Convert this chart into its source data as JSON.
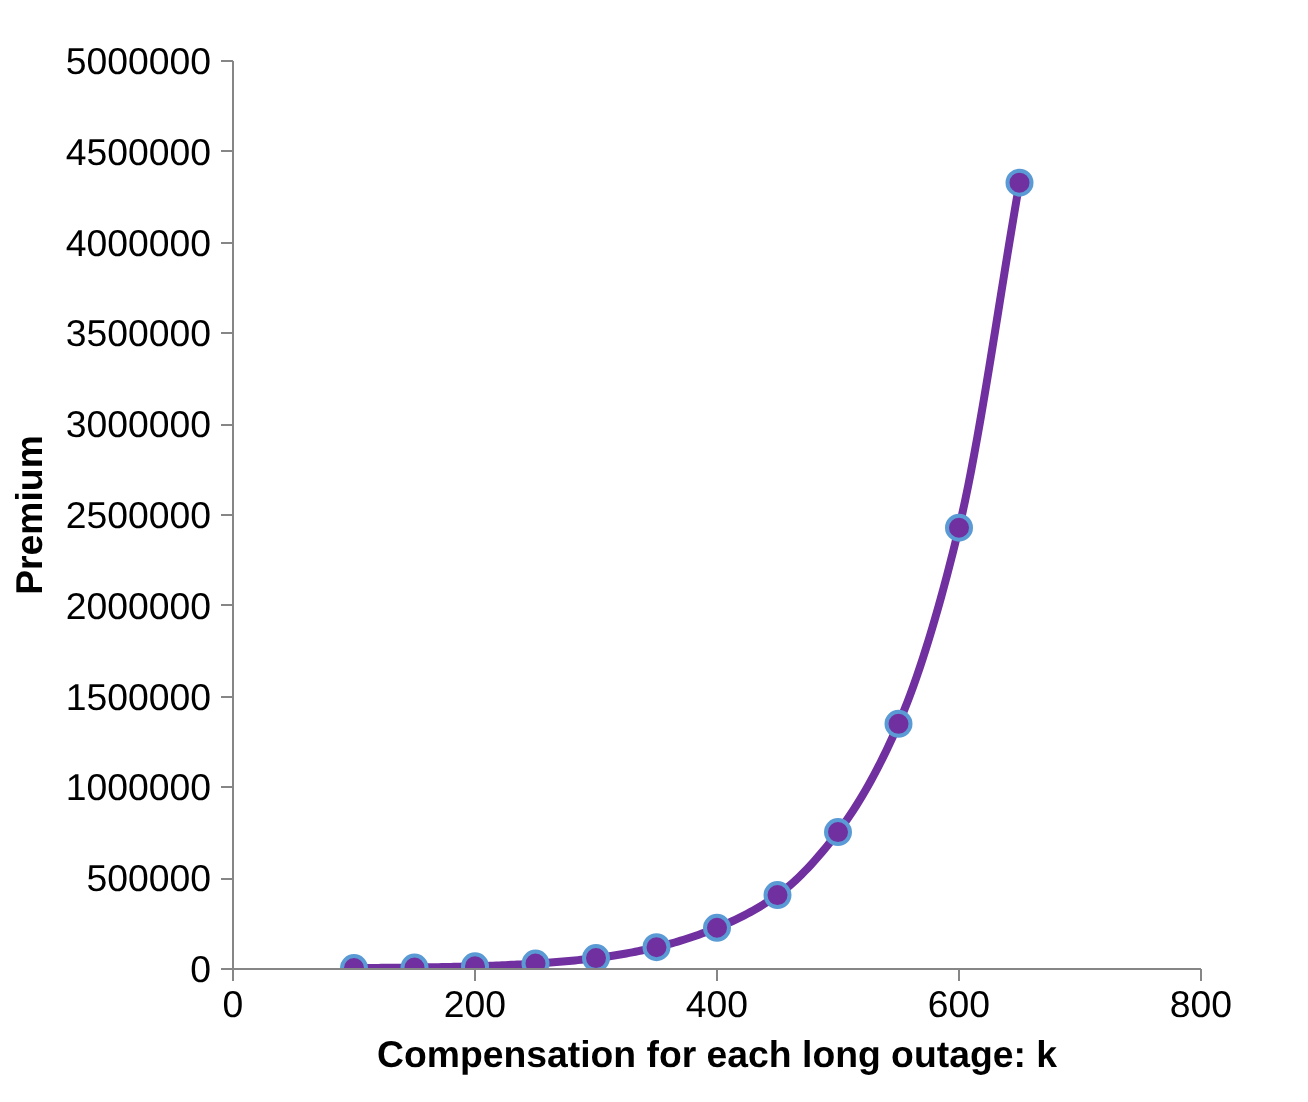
{
  "chart_data": {
    "type": "line",
    "xlabel": "Compensation for each long outage: k",
    "ylabel": "Premium",
    "x": [
      100,
      150,
      200,
      250,
      300,
      350,
      400,
      450,
      500,
      550,
      600,
      650
    ],
    "series": [
      {
        "color": "#7030a0",
        "values": [
          5000,
          8000,
          15000,
          30000,
          60000,
          120000,
          227000,
          407000,
          754000,
          1350000,
          2430000,
          4330000
        ]
      }
    ],
    "xlim": [
      0,
      800
    ],
    "xticks": [
      0,
      200,
      400,
      600,
      800
    ],
    "ylim": [
      0,
      5000000
    ],
    "yticks": [
      0,
      500000,
      1000000,
      1500000,
      2000000,
      2500000,
      3000000,
      3500000,
      4000000,
      4500000,
      5000000
    ],
    "grid": false,
    "marker": "circle",
    "line_style": "solid"
  }
}
